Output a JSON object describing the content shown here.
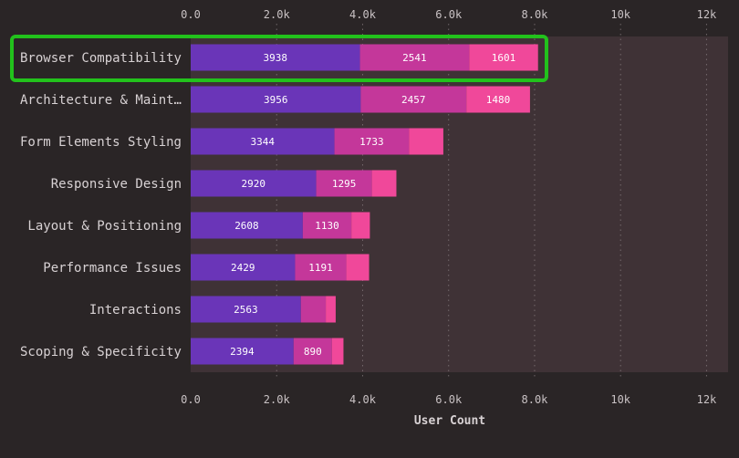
{
  "chart_data": {
    "type": "bar",
    "orientation": "horizontal",
    "stacked": true,
    "categories": [
      "Browser Compatibility",
      "Architecture & Maint…",
      "Form Elements Styling",
      "Responsive Design",
      "Layout & Positioning",
      "Performance Issues",
      "Interactions",
      "Scoping & Specificity"
    ],
    "series": [
      {
        "values": [
          3938,
          3956,
          3344,
          2920,
          2608,
          2429,
          2563,
          2394
        ]
      },
      {
        "values": [
          2541,
          2457,
          1733,
          1295,
          1130,
          1191,
          580,
          890
        ]
      },
      {
        "values": [
          1601,
          1480,
          800,
          570,
          430,
          530,
          230,
          270
        ]
      }
    ],
    "value_labels_shown": [
      [
        true,
        true,
        true,
        true,
        true,
        true,
        true,
        true
      ],
      [
        true,
        true,
        true,
        true,
        true,
        true,
        false,
        true
      ],
      [
        true,
        true,
        false,
        false,
        false,
        false,
        false,
        false
      ]
    ],
    "xlabel": "User Count",
    "xlim": [
      0,
      12500
    ],
    "xticks": [
      0,
      2000,
      4000,
      6000,
      8000,
      10000,
      12000
    ],
    "xtick_labels": [
      "0.0",
      "2.0k",
      "4.0k",
      "6.0k",
      "8.0k",
      "10k",
      "12k"
    ],
    "grid": true,
    "highlighted_category": "Browser Compatibility",
    "colors": {
      "background": "#2a2526",
      "track": "#3f3236",
      "series": [
        "#6a35b8",
        "#c4379a",
        "#f0489a"
      ],
      "highlight_border": "#22c21c",
      "text": "#d8d2d4",
      "axis_text": "#c9c2c4",
      "bar_label": "#ffffff"
    }
  }
}
